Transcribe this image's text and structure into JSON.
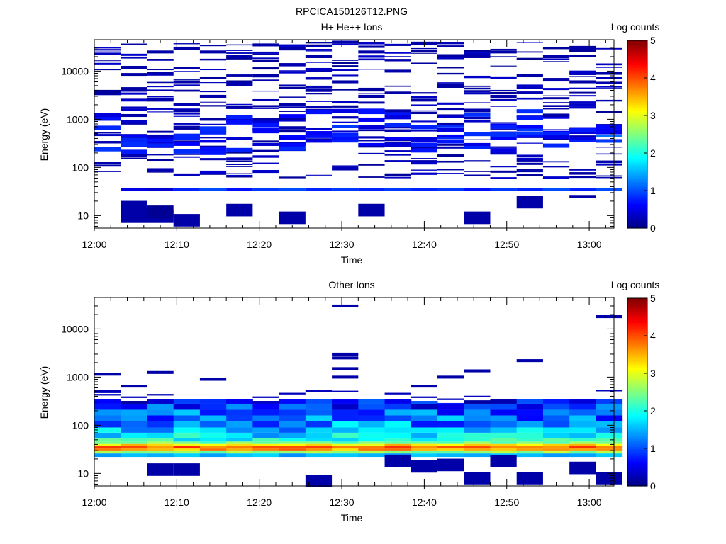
{
  "page_title": "RPCICA150126T12.PNG",
  "chart_data": [
    {
      "type": "heatmap",
      "title": "H+ He++ Ions",
      "xlabel": "Time",
      "ylabel": "Energy (eV)",
      "y_scale": "log",
      "ylim": [
        5.5,
        45000
      ],
      "xlim_minutes": [
        0,
        63
      ],
      "x_ticks": [
        "12:00",
        "12:10",
        "12:20",
        "12:30",
        "12:40",
        "12:50",
        "13:00"
      ],
      "y_ticks": [
        "10",
        "100",
        "1000",
        "10000"
      ],
      "colorbar": {
        "label": "Log counts",
        "range": [
          0,
          5
        ],
        "ticks": [
          "0",
          "1",
          "2",
          "3",
          "4",
          "5"
        ]
      },
      "time_bins_minutes": [
        1.6,
        4.8,
        8.0,
        11.2,
        14.4,
        17.6,
        20.8,
        24.0,
        27.2,
        30.4,
        33.6,
        36.8,
        40.0,
        43.2,
        46.4,
        49.6,
        52.8,
        56.0,
        59.2,
        62.4
      ],
      "cells": [
        [
          1,
          9.5,
          0.2
        ],
        [
          1,
          15,
          0.2
        ],
        [
          1,
          35,
          0.5
        ],
        [
          1,
          180,
          0.25
        ],
        [
          1,
          450,
          0.6
        ],
        [
          1,
          1200,
          0.2
        ],
        [
          1,
          4000,
          0.2
        ],
        [
          1,
          12000,
          0.2
        ],
        [
          2,
          9.5,
          0.2
        ],
        [
          2,
          12,
          0.1
        ],
        [
          2,
          35,
          0.4
        ],
        [
          2,
          90,
          0.25
        ],
        [
          2,
          450,
          0.3
        ],
        [
          2,
          2500,
          0.2
        ],
        [
          2,
          9000,
          0.2
        ],
        [
          2,
          25000,
          0.2
        ],
        [
          3,
          8,
          0.2
        ],
        [
          3,
          35,
          0.8
        ],
        [
          3,
          70,
          0.3
        ],
        [
          3,
          400,
          0.8
        ],
        [
          3,
          1500,
          0.2
        ],
        [
          3,
          6000,
          0.2
        ],
        [
          3,
          30000,
          0.2
        ],
        [
          4,
          35,
          1.0
        ],
        [
          4,
          80,
          0.4
        ],
        [
          4,
          350,
          0.5
        ],
        [
          4,
          3000,
          0.2
        ],
        [
          4,
          25000,
          0.2
        ],
        [
          5,
          13,
          0.2
        ],
        [
          5,
          35,
          0.7
        ],
        [
          5,
          150,
          0.3
        ],
        [
          5,
          400,
          0.4
        ],
        [
          5,
          1800,
          0.2
        ],
        [
          5,
          20000,
          0.2
        ],
        [
          6,
          35,
          0.9
        ],
        [
          6,
          300,
          0.4
        ],
        [
          6,
          1000,
          0.2
        ],
        [
          6,
          8000,
          0.2
        ],
        [
          6,
          35000,
          0.2
        ],
        [
          7,
          9,
          0.2
        ],
        [
          7,
          35,
          1.0
        ],
        [
          7,
          400,
          0.6
        ],
        [
          7,
          2000,
          0.2
        ],
        [
          7,
          30000,
          0.2
        ],
        [
          8,
          35,
          0.8
        ],
        [
          8,
          350,
          0.5
        ],
        [
          8,
          4000,
          0.2
        ],
        [
          8,
          20000,
          0.2
        ],
        [
          9,
          35,
          0.9
        ],
        [
          9,
          450,
          0.8
        ],
        [
          9,
          700,
          0.9
        ],
        [
          9,
          6000,
          0.2
        ],
        [
          9,
          40000,
          0.2
        ],
        [
          10,
          13,
          0.2
        ],
        [
          10,
          35,
          0.8
        ],
        [
          10,
          300,
          0.6
        ],
        [
          10,
          3000,
          0.2
        ],
        [
          10,
          25000,
          0.2
        ],
        [
          11,
          35,
          0.9
        ],
        [
          11,
          400,
          0.6
        ],
        [
          11,
          1500,
          0.2
        ],
        [
          11,
          10000,
          0.2
        ],
        [
          12,
          35,
          0.8
        ],
        [
          12,
          350,
          0.5
        ],
        [
          12,
          2500,
          0.2
        ],
        [
          12,
          38000,
          0.2
        ],
        [
          13,
          35,
          0.9
        ],
        [
          13,
          450,
          0.6
        ],
        [
          13,
          800,
          0.2
        ],
        [
          13,
          5000,
          0.2
        ],
        [
          14,
          9,
          0.2
        ],
        [
          14,
          35,
          0.7
        ],
        [
          14,
          300,
          0.5
        ],
        [
          14,
          1500,
          0.2
        ],
        [
          14,
          20000,
          0.2
        ],
        [
          15,
          35,
          0.9
        ],
        [
          15,
          400,
          0.6
        ],
        [
          15,
          3000,
          0.2
        ],
        [
          15,
          25000,
          0.2
        ],
        [
          16,
          19,
          0.2
        ],
        [
          16,
          35,
          0.8
        ],
        [
          16,
          600,
          0.9
        ],
        [
          16,
          450,
          0.7
        ],
        [
          16,
          8000,
          0.2
        ],
        [
          17,
          35,
          1.0
        ],
        [
          17,
          500,
          0.8
        ],
        [
          17,
          1200,
          0.2
        ],
        [
          17,
          20000,
          0.2
        ],
        [
          18,
          25,
          0.2
        ],
        [
          18,
          35,
          0.8
        ],
        [
          18,
          400,
          0.5
        ],
        [
          18,
          6000,
          0.2
        ],
        [
          18,
          30000,
          0.2
        ],
        [
          19,
          35,
          1.0
        ],
        [
          19,
          450,
          1.2
        ],
        [
          19,
          350,
          0.9
        ],
        [
          19,
          9000,
          0.2
        ]
      ]
    },
    {
      "type": "heatmap",
      "title": "Other Ions",
      "xlabel": "Time",
      "ylabel": "Energy (eV)",
      "y_scale": "log",
      "ylim": [
        5.5,
        45000
      ],
      "xlim_minutes": [
        0,
        63
      ],
      "x_ticks": [
        "12:00",
        "12:10",
        "12:20",
        "12:30",
        "12:40",
        "12:50",
        "13:00"
      ],
      "y_ticks": [
        "10",
        "100",
        "1000",
        "10000"
      ],
      "colorbar": {
        "label": "Log counts",
        "range": [
          0,
          5
        ],
        "ticks": [
          "0",
          "1",
          "2",
          "3",
          "4",
          "5"
        ]
      },
      "time_bins_minutes": [
        1.6,
        4.8,
        8.0,
        11.2,
        14.4,
        17.6,
        20.8,
        24.0,
        27.2,
        30.4,
        33.6,
        36.8,
        40.0,
        43.2,
        46.4,
        49.6,
        52.8,
        56.0,
        59.2,
        62.4
      ],
      "cells": [
        [
          0,
          1150,
          0.2
        ],
        [
          0,
          500,
          0.3
        ],
        [
          1,
          650,
          0.2
        ],
        [
          2,
          1250,
          0.2
        ],
        [
          2,
          12,
          0.2
        ],
        [
          3,
          12,
          0.2
        ],
        [
          4,
          900,
          0.2
        ],
        [
          8,
          7,
          0.2
        ],
        [
          9,
          30000,
          0.2
        ],
        [
          9,
          3000,
          0.2
        ],
        [
          9,
          2500,
          0.2
        ],
        [
          9,
          1500,
          0.2
        ],
        [
          9,
          1000,
          0.2
        ],
        [
          11,
          18,
          0.2
        ],
        [
          12,
          650,
          0.2
        ],
        [
          12,
          14,
          0.2
        ],
        [
          13,
          1000,
          0.2
        ],
        [
          13,
          15,
          0.2
        ],
        [
          14,
          1350,
          0.2
        ],
        [
          14,
          8,
          0.2
        ],
        [
          15,
          18,
          0.2
        ],
        [
          16,
          2200,
          0.2
        ],
        [
          16,
          8,
          0.2
        ],
        [
          18,
          13,
          0.2
        ],
        [
          19,
          18000,
          0.2
        ],
        [
          19,
          8,
          0.2
        ]
      ]
    }
  ]
}
